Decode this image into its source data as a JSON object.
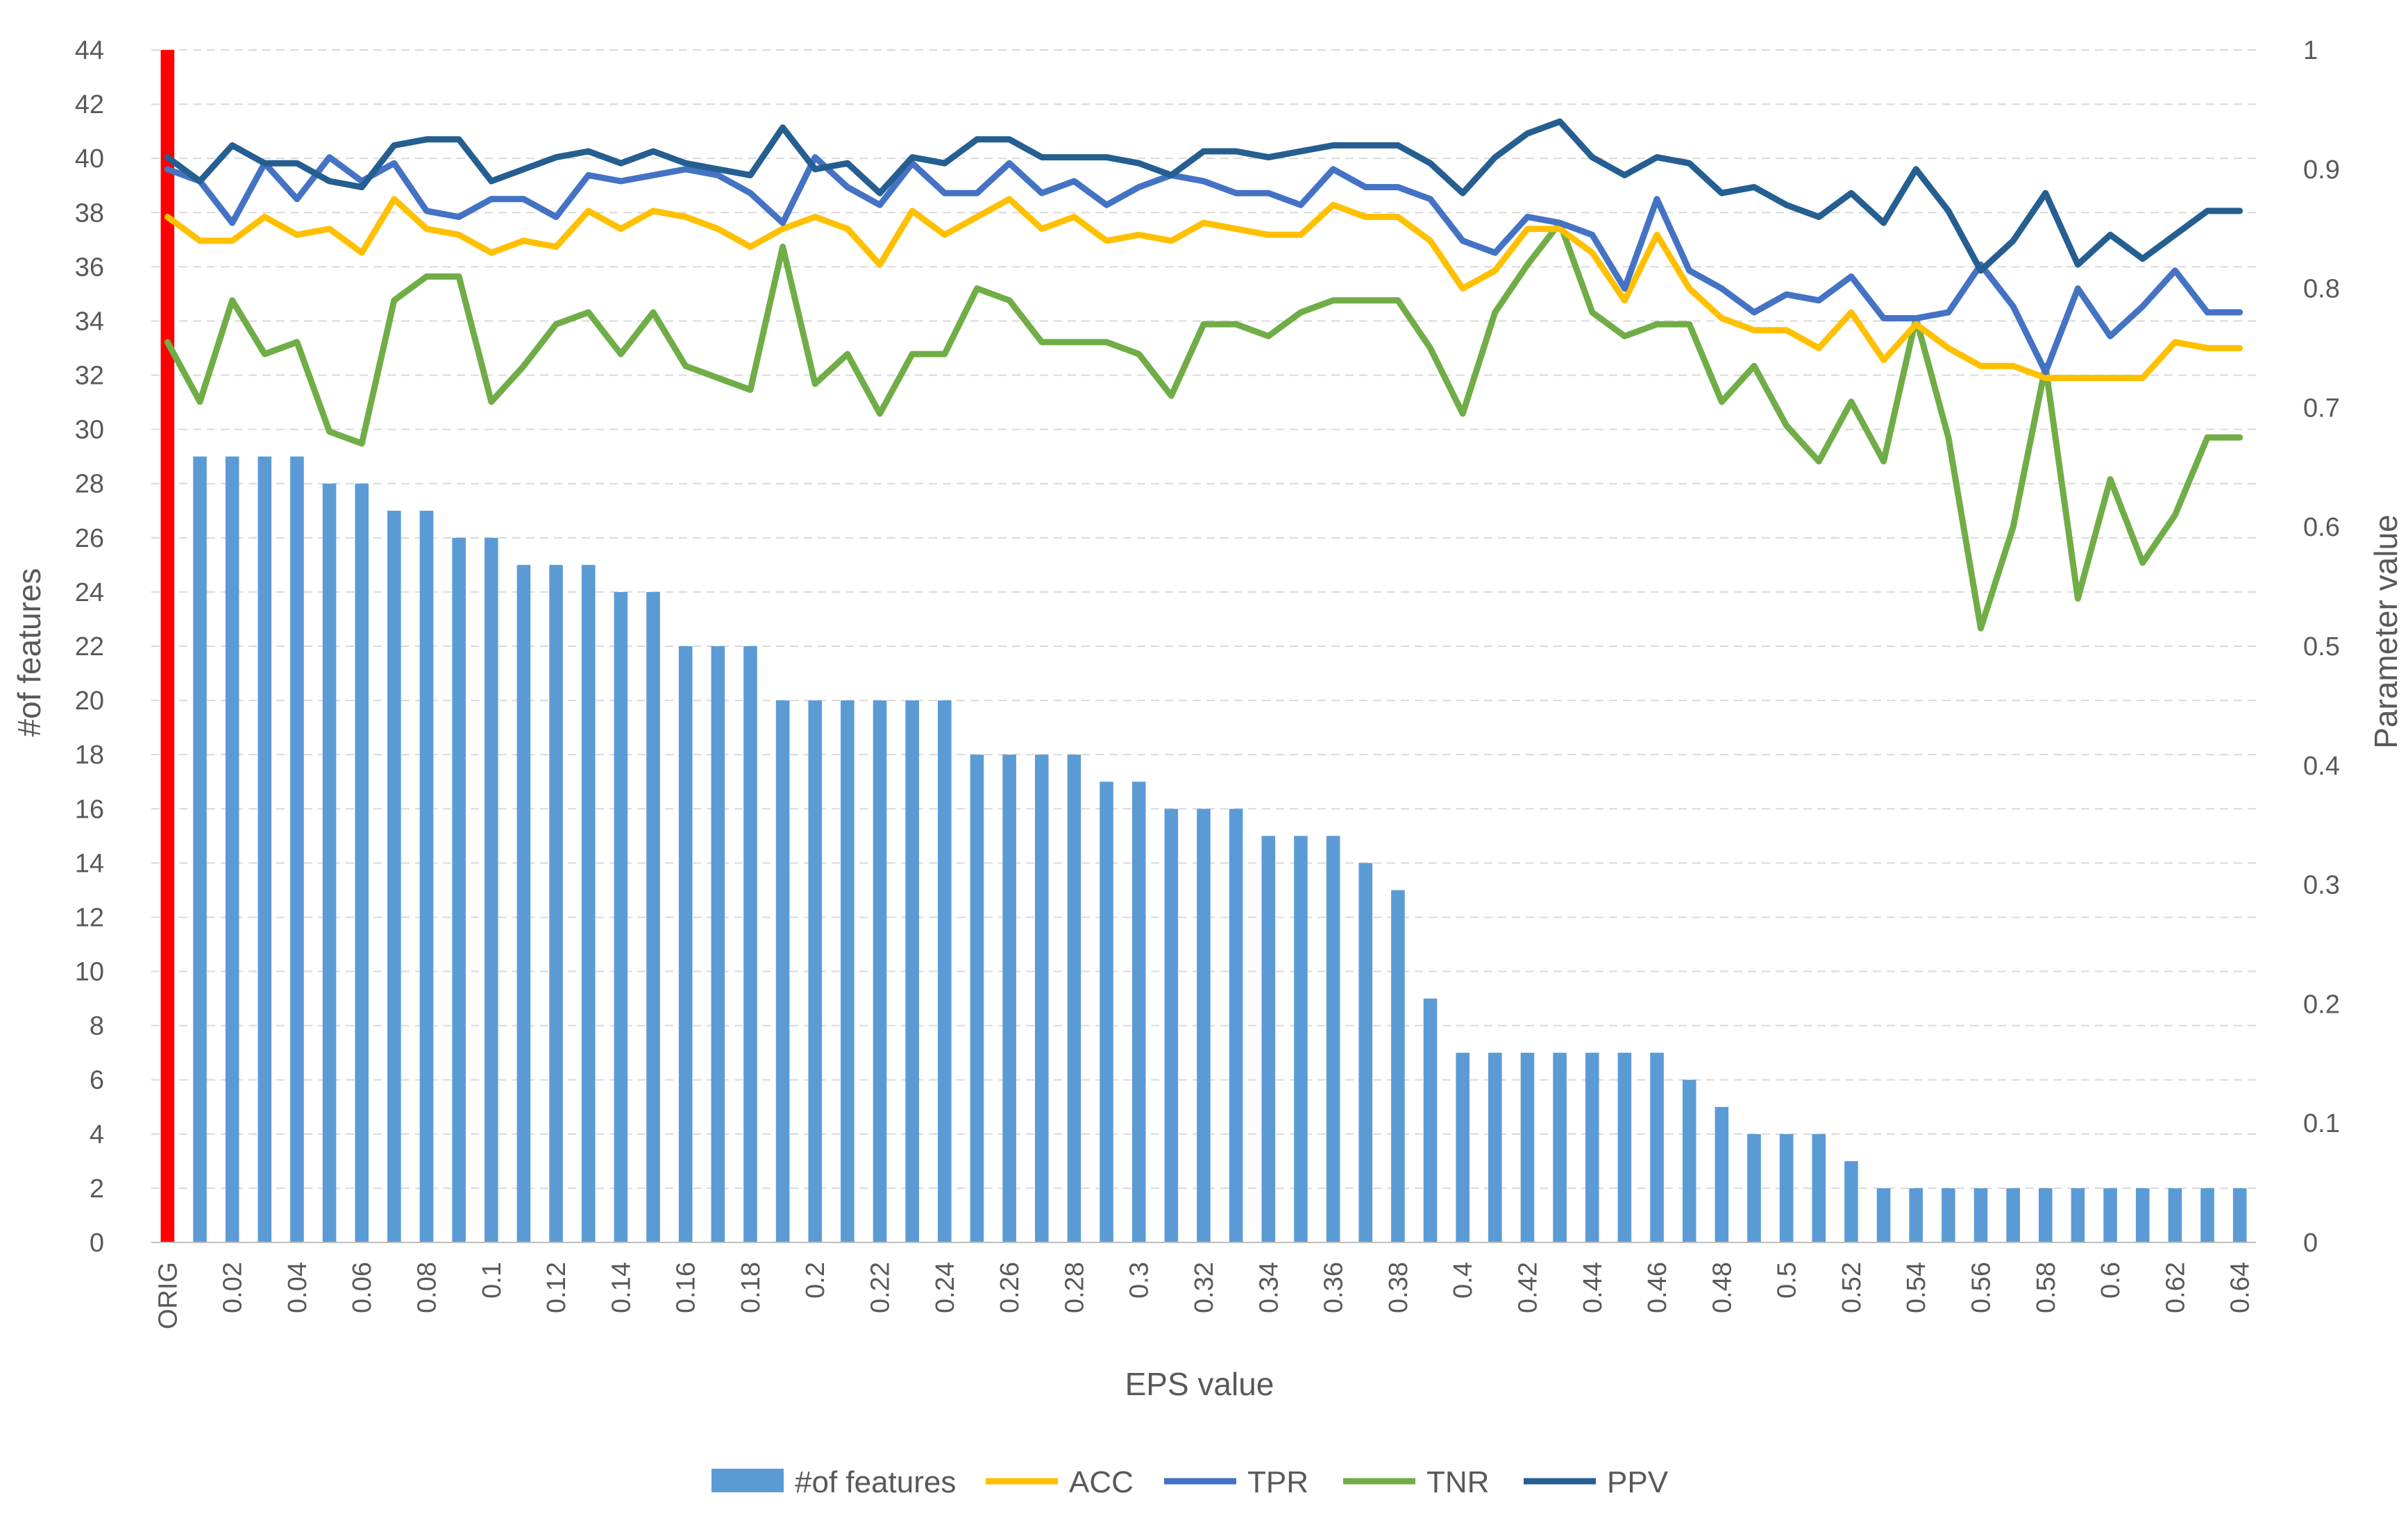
{
  "chart_data": {
    "type": "bar",
    "categories": [
      "ORIG",
      "0.01",
      "0.02",
      "0.03",
      "0.04",
      "0.05",
      "0.06",
      "0.07",
      "0.08",
      "0.09",
      "0.1",
      "0.11",
      "0.12",
      "0.13",
      "0.14",
      "0.15",
      "0.16",
      "0.17",
      "0.18",
      "0.19",
      "0.2",
      "0.21",
      "0.22",
      "0.23",
      "0.24",
      "0.25",
      "0.26",
      "0.27",
      "0.28",
      "0.29",
      "0.3",
      "0.31",
      "0.32",
      "0.33",
      "0.34",
      "0.35",
      "0.36",
      "0.37",
      "0.38",
      "0.39",
      "0.4",
      "0.41",
      "0.42",
      "0.43",
      "0.44",
      "0.45",
      "0.46",
      "0.47",
      "0.48",
      "0.49",
      "0.5",
      "0.51",
      "0.52",
      "0.53",
      "0.54",
      "0.55",
      "0.56",
      "0.57",
      "0.58",
      "0.59",
      "0.6",
      "0.61",
      "0.62",
      "0.63",
      "0.64"
    ],
    "x_tick_labels": [
      "ORIG",
      "0.02",
      "0.04",
      "0.06",
      "0.08",
      "0.1",
      "0.12",
      "0.14",
      "0.16",
      "0.18",
      "0.2",
      "0.22",
      "0.24",
      "0.26",
      "0.28",
      "0.3",
      "0.32",
      "0.34",
      "0.36",
      "0.38",
      "0.4",
      "0.42",
      "0.44",
      "0.46",
      "0.48",
      "0.5",
      "0.52",
      "0.54",
      "0.56",
      "0.58",
      "0.6",
      "0.62",
      "0.64"
    ],
    "xlabel": "EPS value",
    "ylabel": "#of features",
    "ylabel_right": "Parameter value",
    "ylim": [
      0,
      44
    ],
    "ylim_right": [
      0,
      1
    ],
    "y_ticks_left": [
      "0",
      "2",
      "4",
      "6",
      "8",
      "10",
      "12",
      "14",
      "16",
      "18",
      "20",
      "22",
      "24",
      "26",
      "28",
      "30",
      "32",
      "34",
      "36",
      "38",
      "40",
      "42",
      "44"
    ],
    "y_ticks_right": [
      "0",
      "0.1",
      "0.2",
      "0.3",
      "0.4",
      "0.5",
      "0.6",
      "0.7",
      "0.8",
      "0.9",
      "1"
    ],
    "grid": "horizontal dashed",
    "legend_position": "bottom",
    "bar_series": {
      "name": "#of features",
      "color": "#5B9BD5",
      "axis": "left",
      "values": [
        44,
        29,
        29,
        29,
        29,
        28,
        28,
        27,
        27,
        26,
        26,
        25,
        25,
        25,
        24,
        24,
        22,
        22,
        22,
        20,
        20,
        20,
        20,
        20,
        20,
        18,
        18,
        18,
        18,
        17,
        17,
        16,
        16,
        16,
        15,
        15,
        15,
        14,
        13,
        9,
        7,
        7,
        7,
        7,
        7,
        7,
        7,
        6,
        5,
        4,
        4,
        4,
        3,
        2,
        2,
        2,
        2,
        2,
        2,
        2,
        2,
        2,
        2,
        2,
        2
      ],
      "highlight": {
        "index": 0,
        "color": "#FF0000"
      }
    },
    "series": [
      {
        "name": "ACC",
        "color": "#FFC000",
        "axis": "right",
        "values": [
          0.86,
          0.84,
          0.84,
          0.86,
          0.845,
          0.85,
          0.83,
          0.875,
          0.85,
          0.845,
          0.83,
          0.84,
          0.835,
          0.865,
          0.85,
          0.865,
          0.86,
          0.85,
          0.835,
          0.85,
          0.86,
          0.85,
          0.82,
          0.865,
          0.845,
          0.86,
          0.875,
          0.85,
          0.86,
          0.84,
          0.845,
          0.84,
          0.855,
          0.85,
          0.845,
          0.845,
          0.87,
          0.86,
          0.86,
          0.84,
          0.8,
          0.815,
          0.85,
          0.85,
          0.83,
          0.79,
          0.845,
          0.8,
          0.775,
          0.765,
          0.765,
          0.75,
          0.78,
          0.74,
          0.77,
          0.75,
          0.735,
          0.735,
          0.725,
          0.725,
          0.725,
          0.725,
          0.755,
          0.75,
          0.75
        ]
      },
      {
        "name": "TPR",
        "color": "#4472C4",
        "axis": "right",
        "values": [
          0.9,
          0.89,
          0.855,
          0.905,
          0.875,
          0.91,
          0.89,
          0.905,
          0.865,
          0.86,
          0.875,
          0.875,
          0.86,
          0.895,
          0.89,
          0.895,
          0.9,
          0.895,
          0.88,
          0.855,
          0.91,
          0.885,
          0.87,
          0.905,
          0.88,
          0.88,
          0.905,
          0.88,
          0.89,
          0.87,
          0.885,
          0.895,
          0.89,
          0.88,
          0.88,
          0.87,
          0.9,
          0.885,
          0.885,
          0.875,
          0.84,
          0.83,
          0.86,
          0.855,
          0.845,
          0.8,
          0.875,
          0.815,
          0.8,
          0.78,
          0.795,
          0.79,
          0.81,
          0.775,
          0.775,
          0.78,
          0.82,
          0.785,
          0.73,
          0.8,
          0.76,
          0.785,
          0.815,
          0.78,
          0.78
        ]
      },
      {
        "name": "TNR",
        "color": "#70AD47",
        "axis": "right",
        "values": [
          0.755,
          0.705,
          0.79,
          0.745,
          0.755,
          0.68,
          0.67,
          0.79,
          0.81,
          0.81,
          0.705,
          0.735,
          0.77,
          0.78,
          0.745,
          0.78,
          0.735,
          0.725,
          0.715,
          0.835,
          0.72,
          0.745,
          0.695,
          0.745,
          0.745,
          0.8,
          0.79,
          0.755,
          0.755,
          0.755,
          0.745,
          0.71,
          0.77,
          0.77,
          0.76,
          0.78,
          0.79,
          0.79,
          0.79,
          0.75,
          0.695,
          0.78,
          0.82,
          0.855,
          0.78,
          0.76,
          0.77,
          0.77,
          0.705,
          0.735,
          0.685,
          0.655,
          0.705,
          0.655,
          0.775,
          0.675,
          0.515,
          0.6,
          0.735,
          0.54,
          0.64,
          0.57,
          0.61,
          0.675,
          0.675
        ]
      },
      {
        "name": "PPV",
        "color": "#255E91",
        "axis": "right",
        "values": [
          0.91,
          0.89,
          0.92,
          0.905,
          0.905,
          0.89,
          0.885,
          0.92,
          0.925,
          0.925,
          0.89,
          0.9,
          0.91,
          0.915,
          0.905,
          0.915,
          0.905,
          0.9,
          0.895,
          0.935,
          0.9,
          0.905,
          0.88,
          0.91,
          0.905,
          0.925,
          0.925,
          0.91,
          0.91,
          0.91,
          0.905,
          0.895,
          0.915,
          0.915,
          0.91,
          0.915,
          0.92,
          0.92,
          0.92,
          0.905,
          0.88,
          0.91,
          0.93,
          0.94,
          0.91,
          0.895,
          0.91,
          0.905,
          0.88,
          0.885,
          0.87,
          0.86,
          0.88,
          0.855,
          0.9,
          0.865,
          0.815,
          0.84,
          0.88,
          0.82,
          0.845,
          0.825,
          0.845,
          0.865,
          0.865
        ]
      }
    ]
  }
}
